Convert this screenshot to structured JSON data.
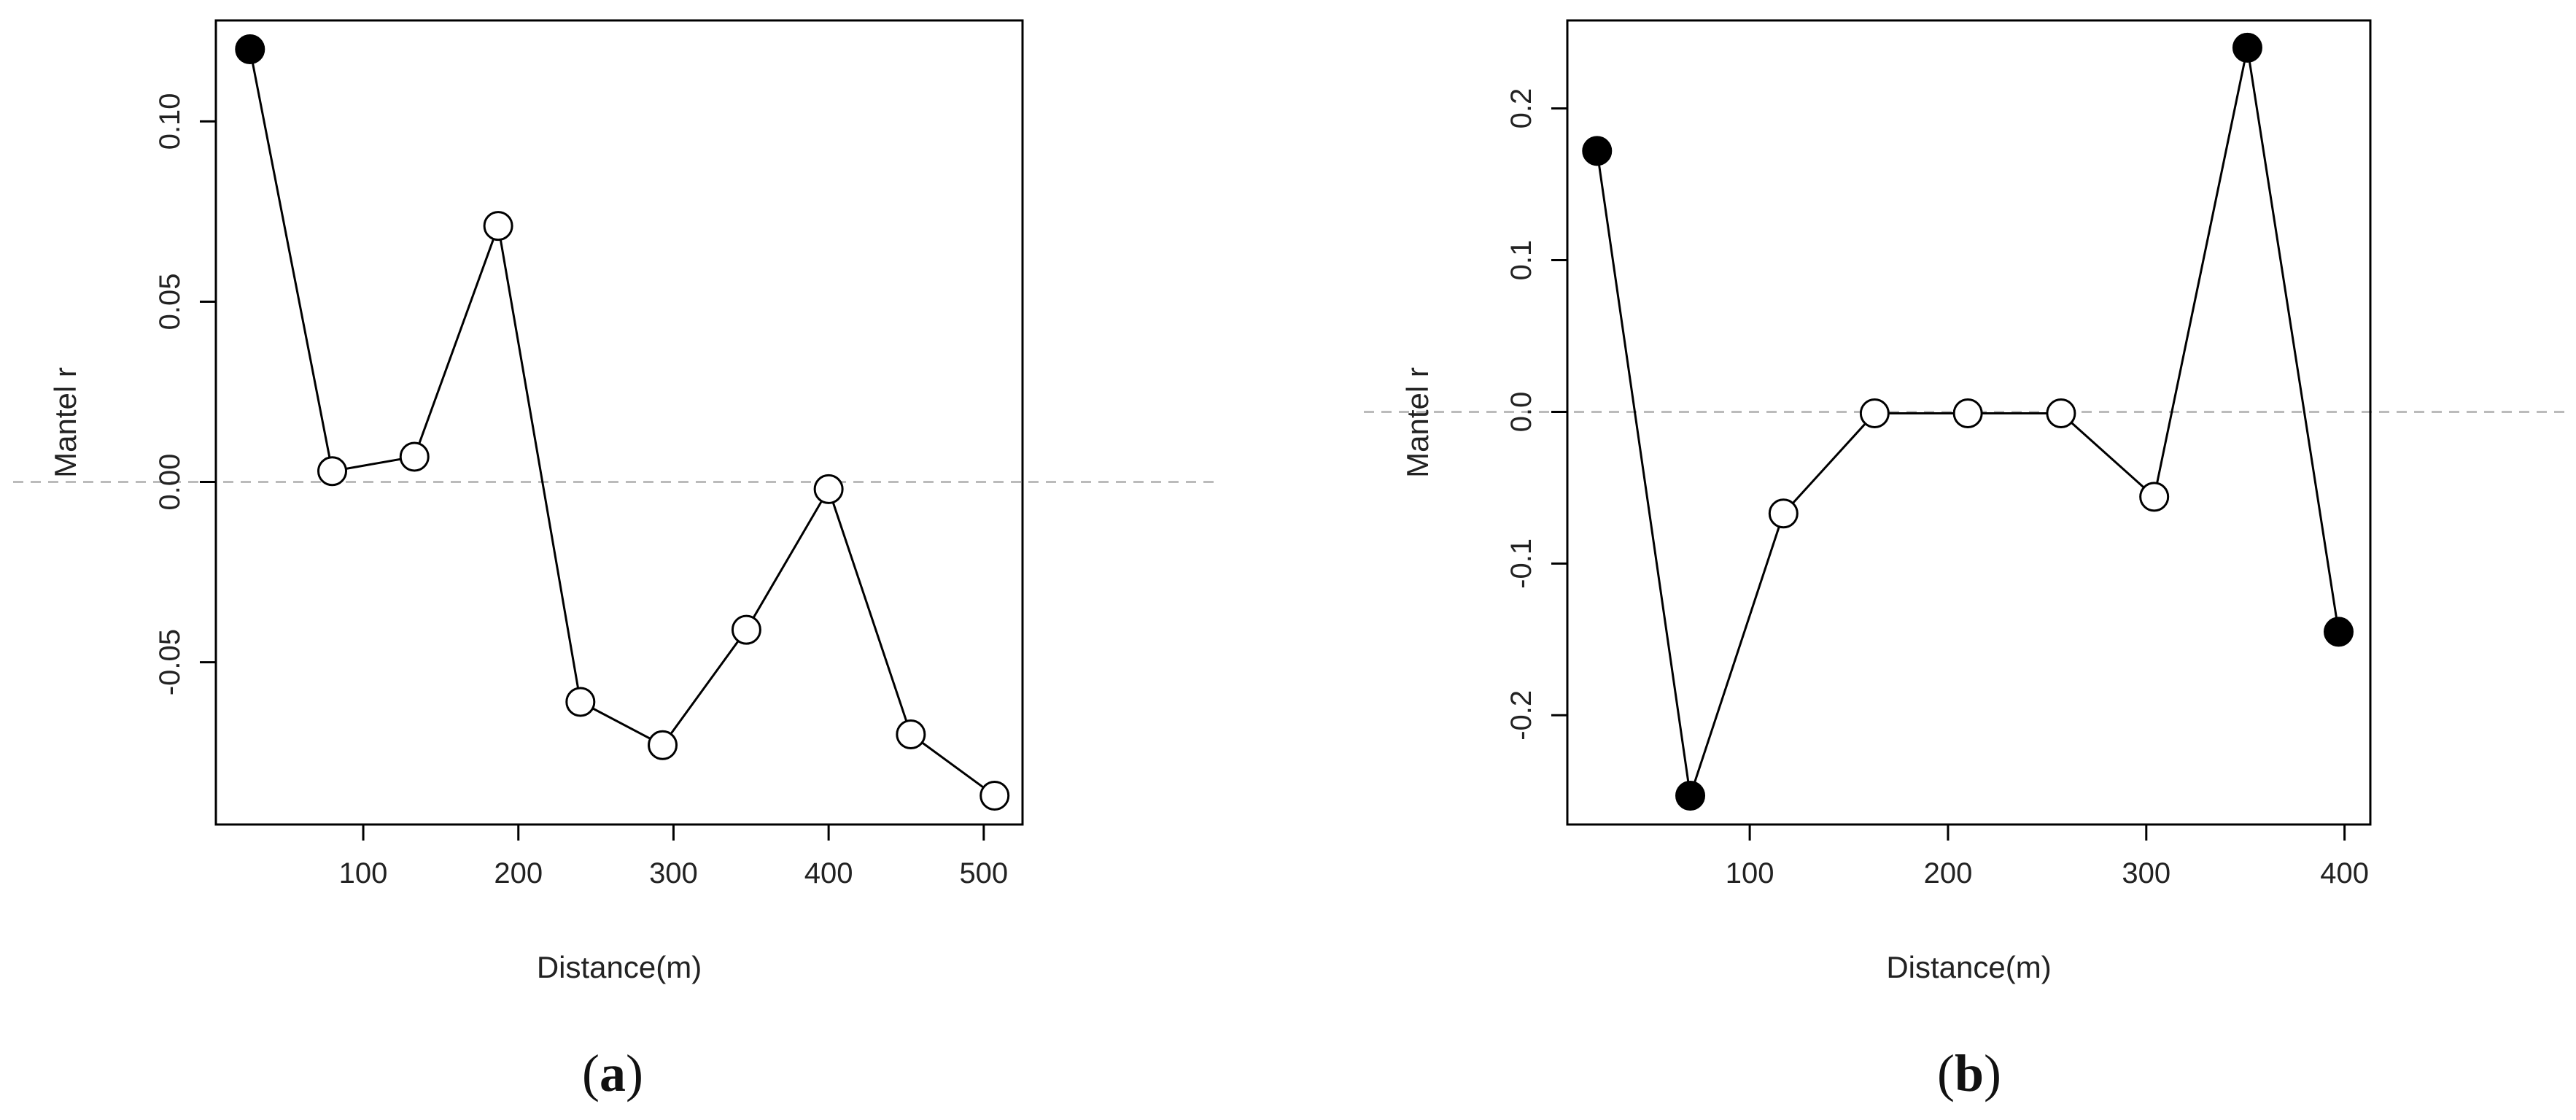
{
  "chart_data": [
    {
      "type": "line",
      "panel_label": "a",
      "xlabel": "Distance(m)",
      "ylabel": "Mantel r",
      "xlim": [
        5,
        525
      ],
      "ylim": [
        -0.095,
        0.128
      ],
      "xticks": [
        100,
        200,
        300,
        400,
        500
      ],
      "yticks": [
        -0.05,
        0.0,
        0.05,
        0.1
      ],
      "ytick_labels": [
        "-0.05",
        "0.00",
        "0.05",
        "0.10"
      ],
      "reference_line": 0,
      "x": [
        27,
        80,
        133,
        187,
        240,
        293,
        347,
        400,
        453,
        507
      ],
      "y": [
        0.12,
        0.003,
        0.007,
        0.071,
        -0.061,
        -0.073,
        -0.041,
        -0.002,
        -0.07,
        -0.087
      ],
      "significant": [
        true,
        false,
        false,
        false,
        false,
        false,
        false,
        false,
        false,
        false
      ]
    },
    {
      "type": "line",
      "panel_label": "b",
      "xlabel": "Distance(m)",
      "ylabel": "Mantel r",
      "xlim": [
        8,
        413
      ],
      "ylim": [
        -0.272,
        0.258
      ],
      "xticks": [
        100,
        200,
        300,
        400
      ],
      "yticks": [
        -0.2,
        -0.1,
        0.0,
        0.1,
        0.2
      ],
      "ytick_labels": [
        "-0.2",
        "-0.1",
        "0.0",
        "0.1",
        "0.2"
      ],
      "reference_line": 0,
      "x": [
        23,
        70,
        117,
        163,
        210,
        257,
        304,
        351,
        397
      ],
      "y": [
        0.172,
        -0.253,
        -0.067,
        -0.001,
        -0.001,
        -0.001,
        -0.056,
        0.24,
        -0.145
      ],
      "significant": [
        true,
        true,
        false,
        false,
        false,
        false,
        false,
        true,
        true
      ]
    }
  ]
}
